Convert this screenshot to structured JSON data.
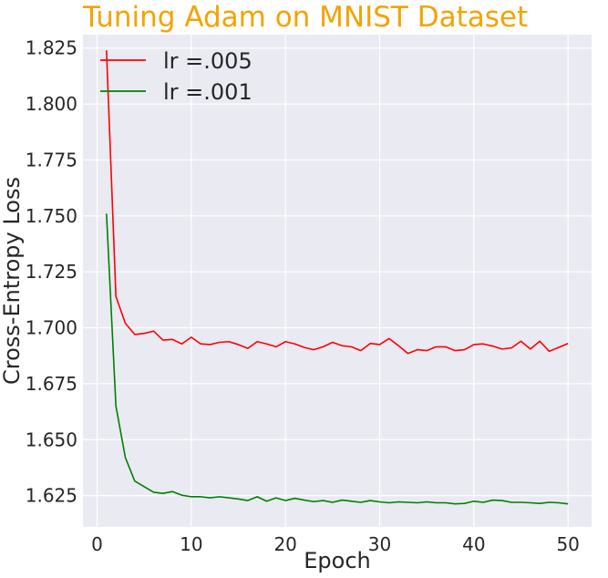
{
  "chart_data": {
    "type": "line",
    "title": "Tuning Adam on MNIST Dataset",
    "xlabel": "Epoch",
    "ylabel": "Cross-Entropy Loss",
    "xlim": [
      -1.5,
      52.5
    ],
    "ylim": [
      1.611,
      1.831
    ],
    "x_ticks": [
      0,
      10,
      20,
      30,
      40,
      50
    ],
    "y_ticks": [
      1.625,
      1.65,
      1.675,
      1.7,
      1.725,
      1.75,
      1.775,
      1.8,
      1.825
    ],
    "y_tick_labels": [
      "1.625",
      "1.650",
      "1.675",
      "1.700",
      "1.725",
      "1.750",
      "1.775",
      "1.800",
      "1.825"
    ],
    "grid": true,
    "legend_position": "top-left",
    "x": [
      1,
      2,
      3,
      4,
      5,
      6,
      7,
      8,
      9,
      10,
      11,
      12,
      13,
      14,
      15,
      16,
      17,
      18,
      19,
      20,
      21,
      22,
      23,
      24,
      25,
      26,
      27,
      28,
      29,
      30,
      31,
      32,
      33,
      34,
      35,
      36,
      37,
      38,
      39,
      40,
      41,
      42,
      43,
      44,
      45,
      46,
      47,
      48,
      49,
      50
    ],
    "series": [
      {
        "name": "lr =.005",
        "color": "#ff0000",
        "values": [
          1.824,
          1.714,
          1.702,
          1.697,
          1.6975,
          1.6985,
          1.6945,
          1.6948,
          1.6928,
          1.6958,
          1.6928,
          1.6925,
          1.6935,
          1.6938,
          1.6925,
          1.6908,
          1.6938,
          1.6928,
          1.6915,
          1.6938,
          1.6928,
          1.6912,
          1.6902,
          1.6915,
          1.6935,
          1.692,
          1.6915,
          1.6898,
          1.693,
          1.6925,
          1.6952,
          1.692,
          1.6885,
          1.6902,
          1.6898,
          1.6915,
          1.6915,
          1.6898,
          1.6902,
          1.6925,
          1.6928,
          1.6918,
          1.6905,
          1.691,
          1.694,
          1.6905,
          1.694,
          1.6895,
          1.6912,
          1.693
        ]
      },
      {
        "name": "lr =.001",
        "color": "#008000",
        "values": [
          1.751,
          1.665,
          1.642,
          1.6315,
          1.629,
          1.6265,
          1.626,
          1.6268,
          1.6252,
          1.6245,
          1.6245,
          1.624,
          1.6245,
          1.624,
          1.6235,
          1.6228,
          1.6245,
          1.6225,
          1.624,
          1.6228,
          1.6238,
          1.623,
          1.6223,
          1.6228,
          1.622,
          1.623,
          1.6225,
          1.622,
          1.6228,
          1.6222,
          1.6218,
          1.6222,
          1.622,
          1.6218,
          1.6222,
          1.6218,
          1.6218,
          1.6213,
          1.6215,
          1.6225,
          1.622,
          1.623,
          1.6228,
          1.622,
          1.622,
          1.6218,
          1.6215,
          1.622,
          1.6218,
          1.6213
        ]
      }
    ]
  }
}
